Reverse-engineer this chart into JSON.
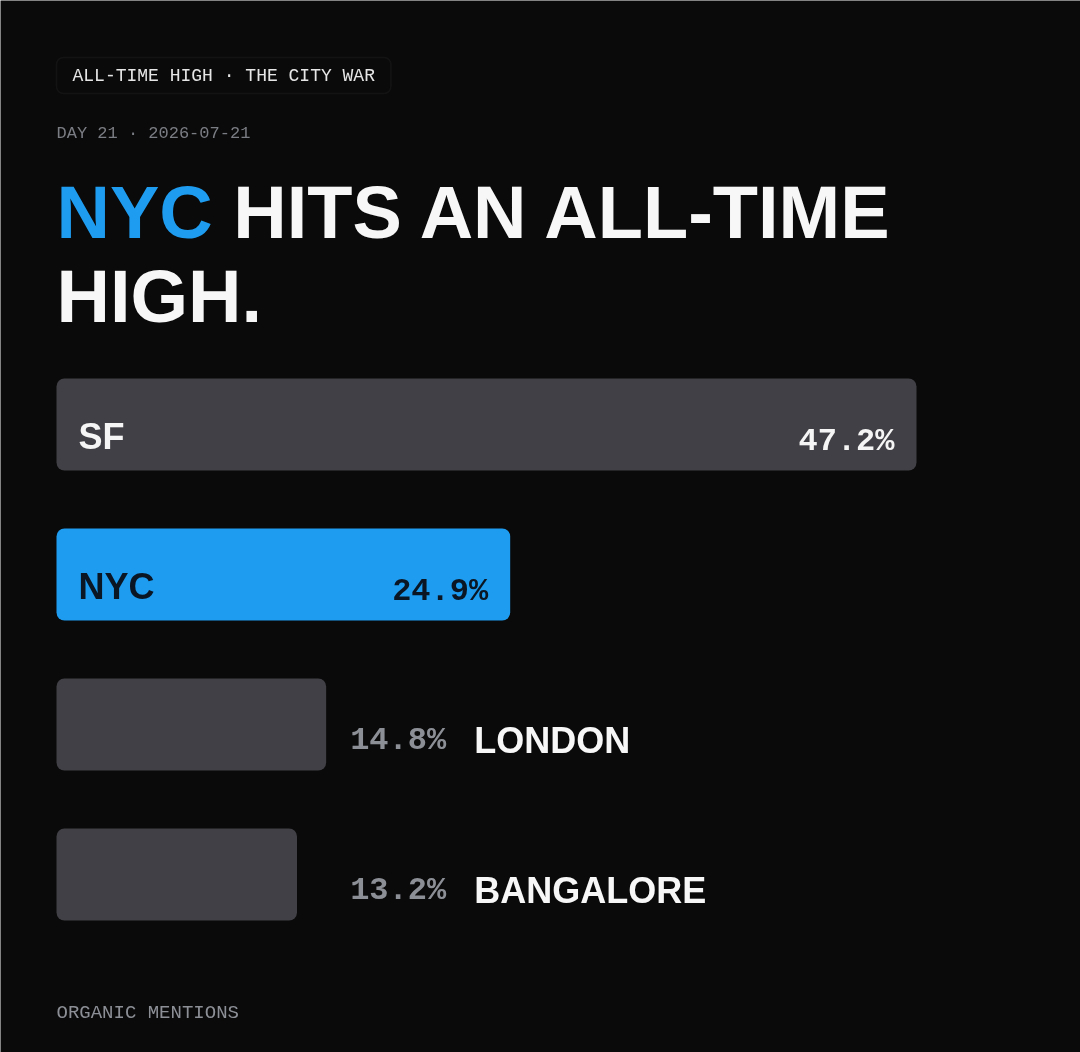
{
  "chart_data": {
    "type": "bar",
    "orientation": "horizontal",
    "title": "NYC HITS AN ALL-TIME HIGH.",
    "annotations": [
      "ALL-TIME HIGH · THE CITY WAR",
      "DAY 21 · 2026-07-21",
      "ORGANIC MENTIONS"
    ],
    "categories": [
      "SF",
      "NYC",
      "LONDON",
      "BANGALORE"
    ],
    "values": [
      47.2,
      24.9,
      14.8,
      13.2
    ],
    "colors": [
      "#404046",
      "#1e9cf0",
      "#404046",
      "#404046"
    ],
    "value_labels": [
      "47.2%",
      "24.9%",
      "14.8%",
      "13.2%"
    ]
  }
}
